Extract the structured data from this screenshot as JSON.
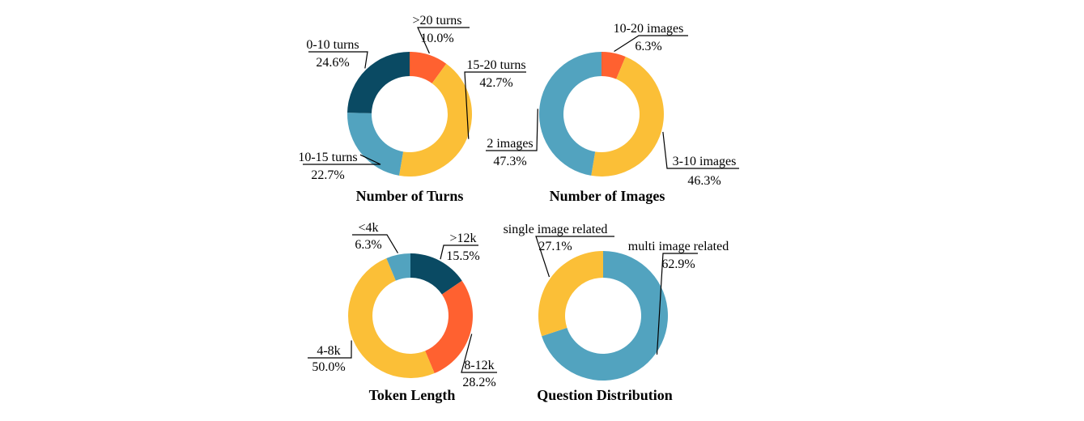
{
  "colors": {
    "dark_teal": "#0a4a63",
    "orange_red": "#ff6130",
    "yellow": "#fbbf37",
    "light_blue": "#52a3bf"
  },
  "chart_data": [
    {
      "type": "pie",
      "title": "Number of Turns",
      "slices": [
        {
          "label": ">20 turns",
          "value": 10.0,
          "display": "10.0%",
          "color": "#ff6130"
        },
        {
          "label": "15-20 turns",
          "value": 42.7,
          "display": "42.7%",
          "color": "#fbbf37"
        },
        {
          "label": "10-15 turns",
          "value": 22.7,
          "display": "22.7%",
          "color": "#52a3bf"
        },
        {
          "label": "0-10 turns",
          "value": 24.6,
          "display": "24.6%",
          "color": "#0a4a63"
        }
      ]
    },
    {
      "type": "pie",
      "title": "Number of Images",
      "slices": [
        {
          "label": "10-20 images",
          "value": 6.3,
          "display": "6.3%",
          "color": "#ff6130"
        },
        {
          "label": "3-10 images",
          "value": 46.3,
          "display": "46.3%",
          "color": "#fbbf37"
        },
        {
          "label": "2 images",
          "value": 47.3,
          "display": "47.3%",
          "color": "#52a3bf"
        }
      ]
    },
    {
      "type": "pie",
      "title": "Token Length",
      "slices": [
        {
          "label": ">12k",
          "value": 15.5,
          "display": "15.5%",
          "color": "#0a4a63"
        },
        {
          "label": "8-12k",
          "value": 28.2,
          "display": "28.2%",
          "color": "#ff6130"
        },
        {
          "label": "4-8k",
          "value": 50.0,
          "display": "50.0%",
          "color": "#fbbf37"
        },
        {
          "label": "<4k",
          "value": 6.3,
          "display": "6.3%",
          "color": "#52a3bf"
        }
      ]
    },
    {
      "type": "pie",
      "title": "Question Distribution",
      "slices": [
        {
          "label": "multi image related",
          "value": 62.9,
          "display": "62.9%",
          "color": "#52a3bf"
        },
        {
          "label": "single image related",
          "value": 27.1,
          "display": "27.1%",
          "color": "#fbbf37"
        }
      ]
    }
  ]
}
